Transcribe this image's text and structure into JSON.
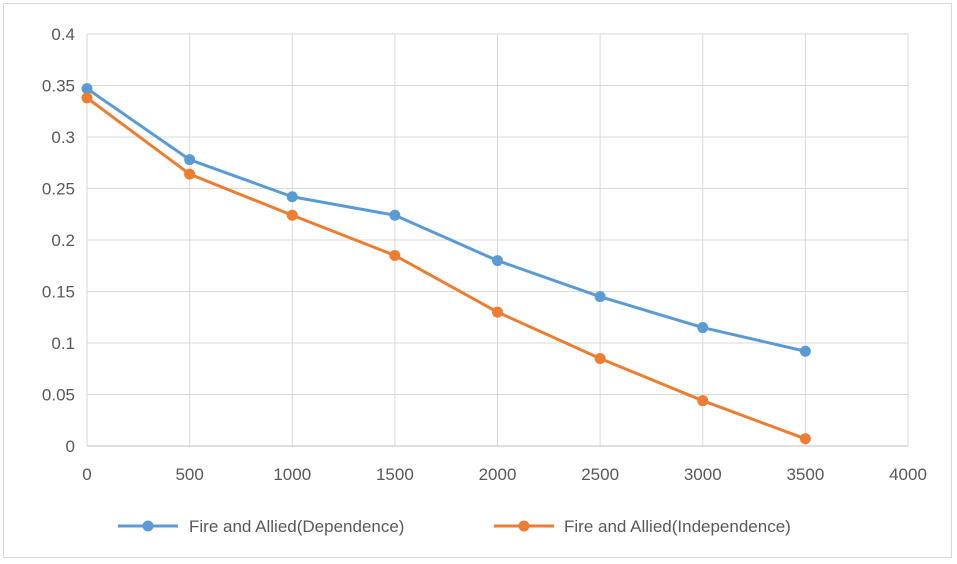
{
  "chart_data": {
    "type": "line",
    "title": "",
    "xlabel": "",
    "ylabel": "",
    "x": [
      0,
      500,
      1000,
      1500,
      2000,
      2500,
      3000,
      3500
    ],
    "xlim": [
      0,
      4000
    ],
    "ylim": [
      0,
      0.4
    ],
    "x_ticks": [
      "0",
      "500",
      "1000",
      "1500",
      "2000",
      "2500",
      "3000",
      "3500",
      "4000"
    ],
    "y_ticks": [
      "0",
      "0.05",
      "0.1",
      "0.15",
      "0.2",
      "0.25",
      "0.3",
      "0.35",
      "0.4"
    ],
    "grid": true,
    "legend_position": "bottom",
    "series": [
      {
        "name": "Fire and Allied(Dependence)",
        "color": "#5B9BD5",
        "values": [
          0.347,
          0.278,
          0.242,
          0.224,
          0.18,
          0.145,
          0.115,
          0.092
        ]
      },
      {
        "name": "Fire and Allied(Independence)",
        "color": "#ED7D31",
        "values": [
          0.338,
          0.264,
          0.224,
          0.185,
          0.13,
          0.085,
          0.044,
          0.007
        ]
      }
    ]
  }
}
